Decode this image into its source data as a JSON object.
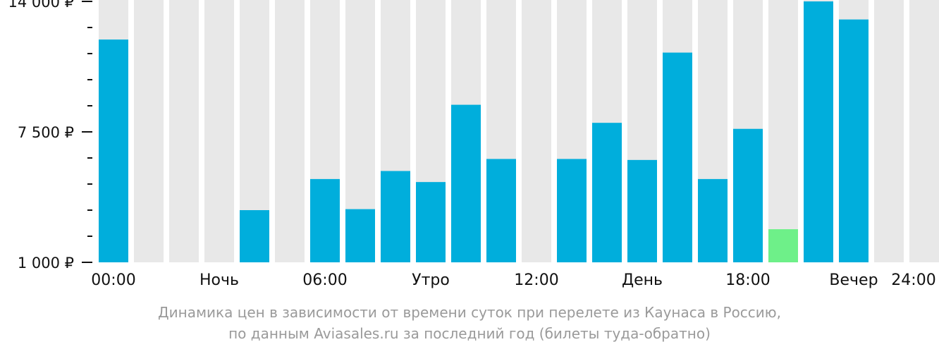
{
  "chart_data": {
    "type": "bar",
    "ylim": [
      1000,
      14000
    ],
    "y_ticks": [
      {
        "value": 14000,
        "label": "14 000 ₽"
      },
      {
        "value": 7500,
        "label": "7 500 ₽"
      },
      {
        "value": 1000,
        "label": "1 000 ₽"
      }
    ],
    "x_tick_labels": [
      "00:00",
      "Ночь",
      "06:00",
      "Утро",
      "12:00",
      "День",
      "18:00",
      "Вечер",
      "24:00"
    ],
    "hours": [
      0,
      1,
      2,
      3,
      4,
      5,
      6,
      7,
      8,
      9,
      10,
      11,
      12,
      13,
      14,
      15,
      16,
      17,
      18,
      19,
      20,
      21,
      22,
      23
    ],
    "values": [
      12100,
      null,
      null,
      null,
      3600,
      null,
      5150,
      3650,
      5550,
      5000,
      8850,
      6150,
      null,
      6150,
      7950,
      6100,
      11450,
      5150,
      7650,
      2650,
      14000,
      13100,
      null,
      null
    ],
    "highlight_index": 19,
    "colors": {
      "bar": "#00aedc",
      "highlight": "#6ef089",
      "empty": "#e8e8e8"
    }
  },
  "caption": {
    "line1": "Динамика цен в зависимости от времени суток при перелете из Каунаса в Россию,",
    "line2": "по данным Aviasales.ru за последний год (билеты туда-обратно)"
  }
}
